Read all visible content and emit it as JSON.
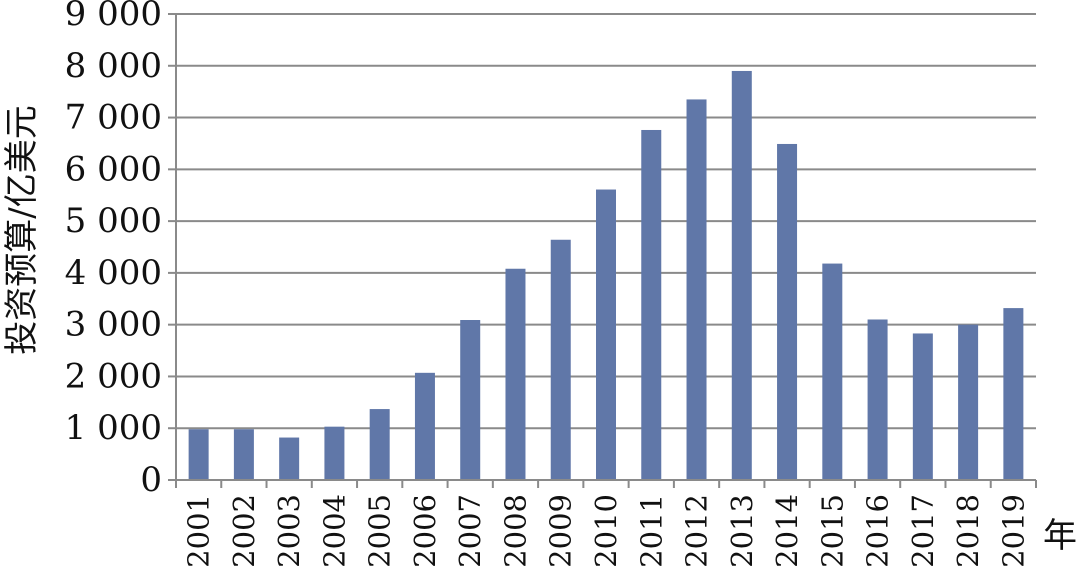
{
  "chart_data": {
    "type": "bar",
    "title": "",
    "xlabel": "年",
    "ylabel": "投资预算/亿美元",
    "categories": [
      "2001",
      "2002",
      "2003",
      "2004",
      "2005",
      "2006",
      "2007",
      "2008",
      "2009",
      "2010",
      "2011",
      "2012",
      "2013",
      "2014",
      "2015",
      "2016",
      "2017",
      "2018",
      "2019"
    ],
    "values": [
      980,
      980,
      820,
      1030,
      1370,
      2070,
      3090,
      4080,
      4640,
      5610,
      6760,
      7350,
      7900,
      6490,
      4180,
      3100,
      2830,
      3000,
      3320
    ],
    "yticks": [
      "0",
      "1 000",
      "2 000",
      "3 000",
      "4 000",
      "5 000",
      "6 000",
      "7 000",
      "8 000",
      "9 000"
    ],
    "ylim": [
      0,
      9000
    ],
    "grid": true,
    "legend": "none",
    "colors": {
      "bar": "#6077a8",
      "grid": "#8a8a8a",
      "axis": "#8a8a8a",
      "text": "#111111"
    }
  }
}
